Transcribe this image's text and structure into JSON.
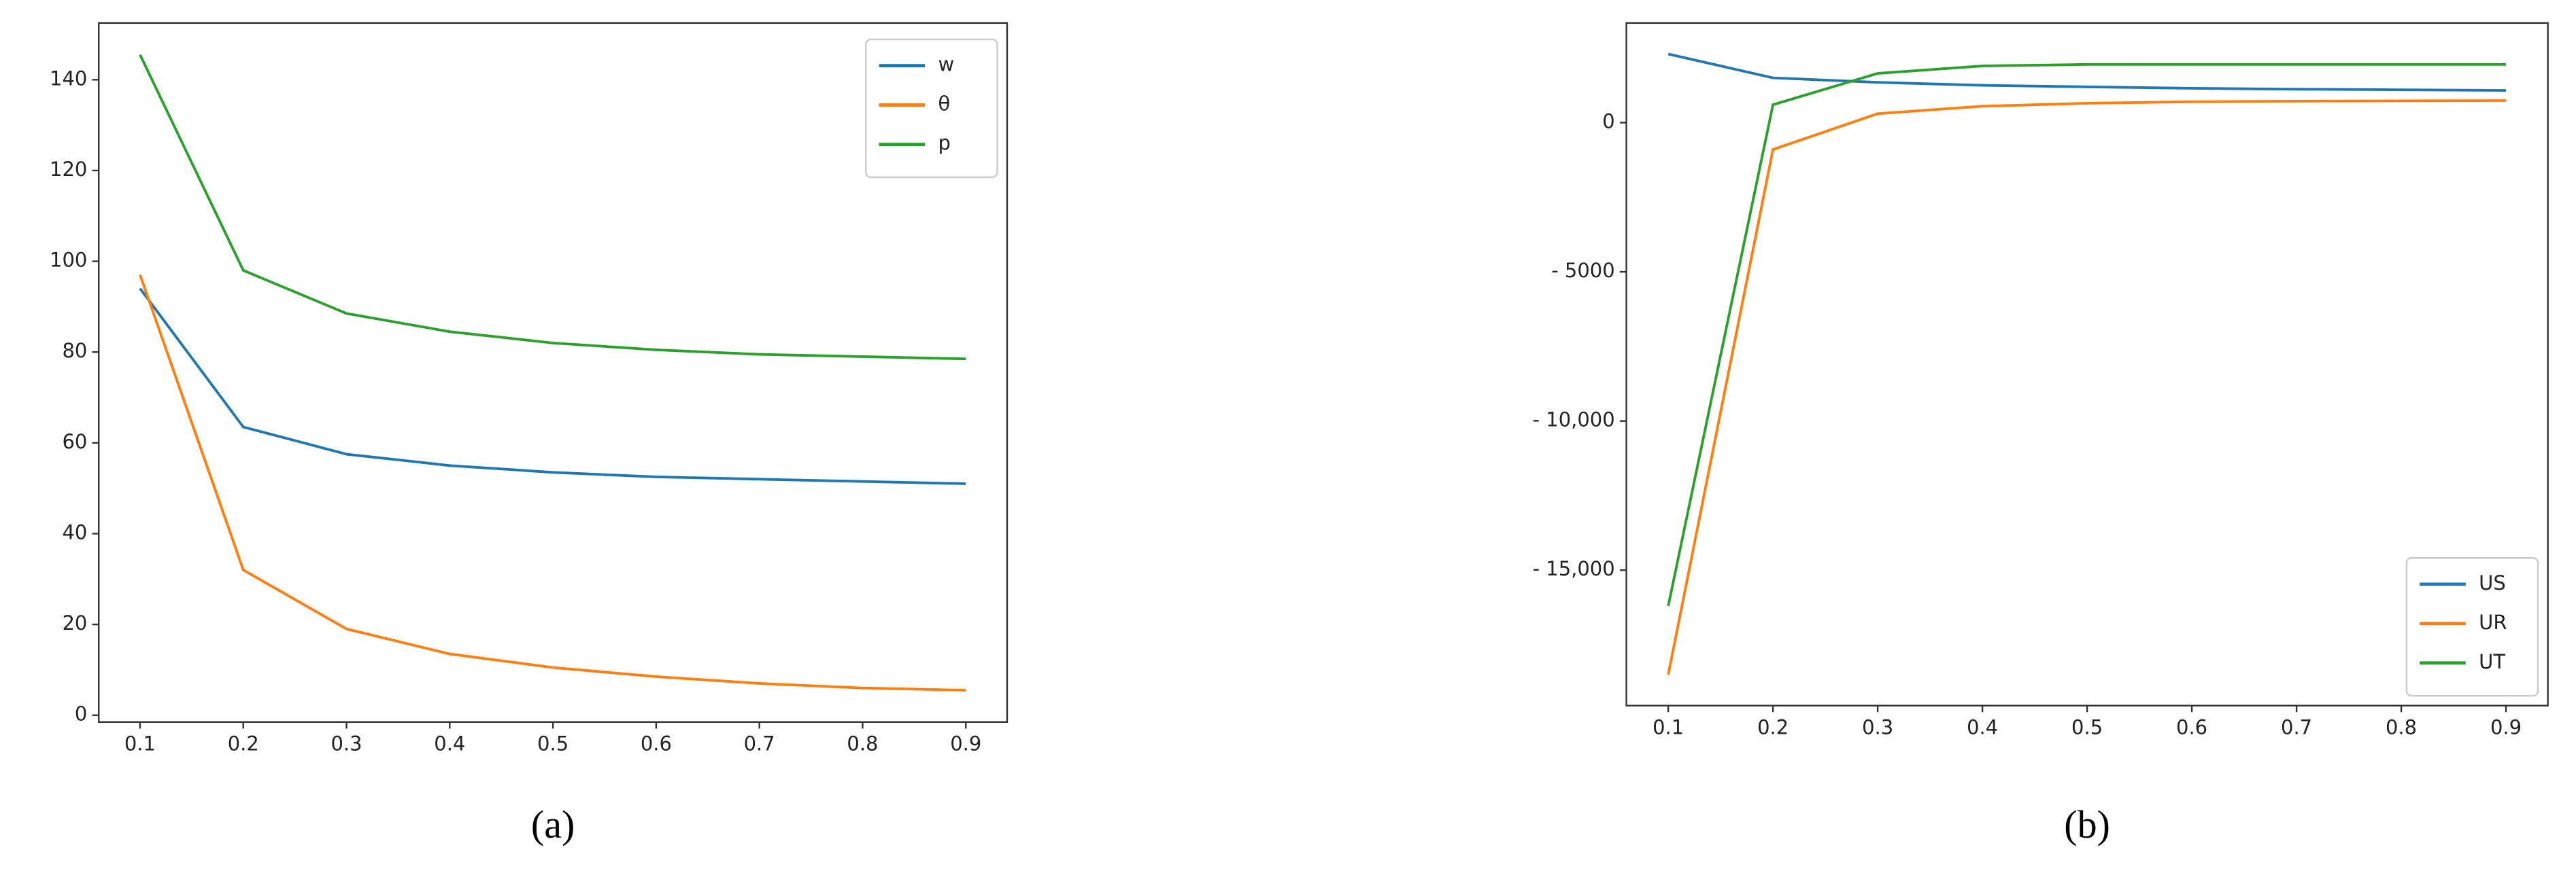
{
  "chart_data": [
    {
      "type": "line",
      "caption": "(a)",
      "x": [
        0.1,
        0.2,
        0.3,
        0.4,
        0.5,
        0.6,
        0.7,
        0.8,
        0.9
      ],
      "xlim": [
        0.06,
        0.94
      ],
      "xticks": [
        0.1,
        0.2,
        0.3,
        0.4,
        0.5,
        0.6,
        0.7,
        0.8,
        0.9
      ],
      "ylim": [
        -1.5,
        152.5
      ],
      "yticks": [
        0,
        20,
        40,
        60,
        80,
        100,
        120,
        140
      ],
      "legend": "upper right",
      "series": [
        {
          "name": "w",
          "color": "#1f77b4",
          "values": [
            94,
            63.5,
            57.5,
            55,
            53.5,
            52.5,
            52,
            51.5,
            51
          ]
        },
        {
          "name": "θ",
          "color": "#ff7f0e",
          "values": [
            97,
            32,
            19,
            13.5,
            10.5,
            8.5,
            7,
            6,
            5.5
          ]
        },
        {
          "name": "p",
          "color": "#2ca02c",
          "values": [
            145.5,
            98,
            88.5,
            84.5,
            82,
            80.5,
            79.5,
            79,
            78.5
          ]
        }
      ]
    },
    {
      "type": "line",
      "caption": "(b)",
      "x": [
        0.1,
        0.2,
        0.3,
        0.4,
        0.5,
        0.6,
        0.7,
        0.8,
        0.9
      ],
      "xlim": [
        0.06,
        0.94
      ],
      "xticks": [
        0.1,
        0.2,
        0.3,
        0.4,
        0.5,
        0.6,
        0.7,
        0.8,
        0.9
      ],
      "ylim": [
        -19540,
        3340
      ],
      "yticks": [
        0,
        {
          "value": -5000,
          "label": "- 5000"
        },
        {
          "value": -10000,
          "label": "- 10,000"
        },
        {
          "value": -15000,
          "label": "- 15,000"
        }
      ],
      "legend": "lower right",
      "series": [
        {
          "name": "US",
          "color": "#1f77b4",
          "values": [
            2300,
            1500,
            1350,
            1250,
            1200,
            1150,
            1120,
            1100,
            1080
          ]
        },
        {
          "name": "UR",
          "color": "#ff7f0e",
          "values": [
            -18500,
            -900,
            300,
            550,
            650,
            700,
            720,
            730,
            740
          ]
        },
        {
          "name": "UT",
          "color": "#2ca02c",
          "values": [
            -16200,
            600,
            1650,
            1900,
            1950,
            1950,
            1950,
            1950,
            1950
          ]
        }
      ]
    }
  ]
}
